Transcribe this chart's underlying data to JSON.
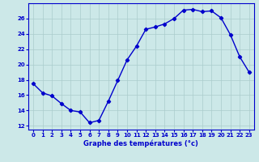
{
  "x": [
    0,
    1,
    2,
    3,
    4,
    5,
    6,
    7,
    8,
    9,
    10,
    11,
    12,
    13,
    14,
    15,
    16,
    17,
    18,
    19,
    20,
    21,
    22,
    23
  ],
  "y": [
    17.5,
    16.3,
    15.9,
    14.9,
    14.0,
    13.8,
    12.4,
    12.7,
    15.2,
    17.9,
    20.6,
    22.4,
    24.6,
    24.9,
    25.3,
    26.0,
    27.1,
    27.2,
    26.9,
    27.0,
    26.1,
    23.9,
    21.0,
    19.0
  ],
  "line_color": "#0000cc",
  "marker": "D",
  "markersize": 2.2,
  "xlabel": "Graphe des températures (°c)",
  "xlabel_color": "#0000cc",
  "bg_color": "#cce8e8",
  "grid_color": "#aacccc",
  "axis_color": "#0000cc",
  "tick_color": "#0000cc",
  "ylim": [
    11.5,
    28.0
  ],
  "yticks": [
    12,
    14,
    16,
    18,
    20,
    22,
    24,
    26
  ],
  "xlim": [
    -0.5,
    23.5
  ],
  "xticks": [
    0,
    1,
    2,
    3,
    4,
    5,
    6,
    7,
    8,
    9,
    10,
    11,
    12,
    13,
    14,
    15,
    16,
    17,
    18,
    19,
    20,
    21,
    22,
    23
  ],
  "tick_fontsize": 5.0,
  "xlabel_fontsize": 6.0,
  "linewidth": 1.0
}
